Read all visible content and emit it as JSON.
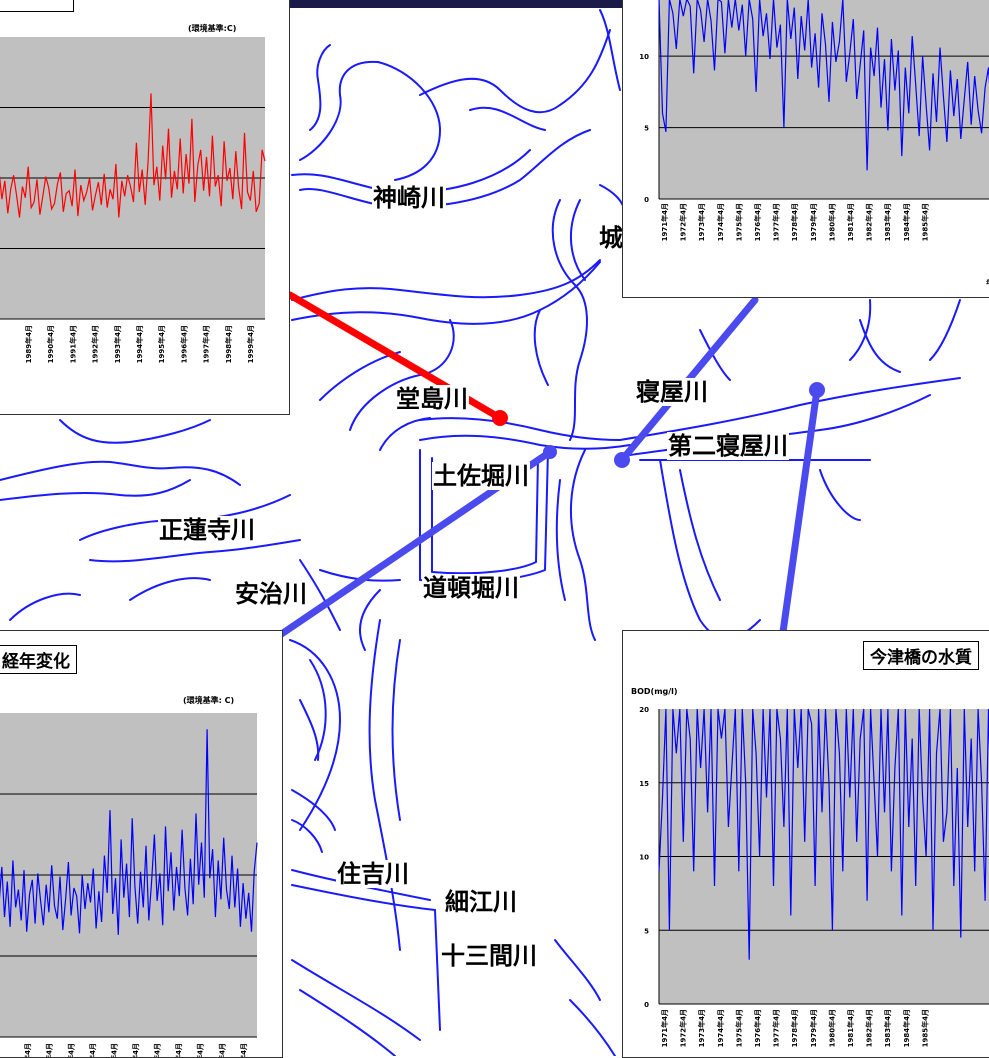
{
  "map": {
    "rivers": [
      {
        "name": "神崎川"
      },
      {
        "name": "堂島川"
      },
      {
        "name": "土佐堀川"
      },
      {
        "name": "寝屋川"
      },
      {
        "name": "第二寝屋川"
      },
      {
        "name": "正蓮寺川"
      },
      {
        "name": "安治川"
      },
      {
        "name": "道頓堀川"
      },
      {
        "name": "住吉川"
      },
      {
        "name": "細江川"
      },
      {
        "name": "十三間川"
      },
      {
        "name": "城"
      }
    ],
    "colors": {
      "river": "#1a1aff",
      "pointer_red": "#ff0000",
      "pointer_blue": "#4444ee"
    }
  },
  "chart_data": [
    {
      "type": "line",
      "panel": "top-left",
      "title": "",
      "std_note": "(環境基準:C)",
      "ylabel": "",
      "series_color": "#ff0000",
      "x_ticks": [
        "1989年4月",
        "1990年4月",
        "1991年4月",
        "1992年4月",
        "1993年4月",
        "1994年4月",
        "1995年4月",
        "1996年4月",
        "1997年4月",
        "1998年4月",
        "1999年4月"
      ],
      "ylim": [
        0,
        20
      ],
      "values": [
        10.5,
        8.5,
        9.8,
        7.5,
        9.2,
        10.2,
        8.8,
        7.2,
        9.4,
        8.6,
        10.8,
        7.9,
        8.3,
        9.9,
        7.4,
        8.7,
        10.1,
        9.3,
        7.8,
        8.2,
        9.6,
        10.4,
        7.6,
        8.9,
        9.1,
        8.0,
        10.6,
        7.3,
        9.5,
        8.4,
        9.0,
        10.0,
        7.7,
        8.8,
        9.7,
        8.1,
        10.3,
        7.9,
        9.2,
        8.5,
        11.0,
        7.2,
        9.8,
        8.7,
        10.2,
        9.4,
        8.3,
        12.5,
        9.0,
        10.6,
        8.1,
        11.2,
        16.0,
        9.5,
        10.8,
        8.4,
        12.3,
        9.9,
        13.5,
        8.6,
        10.5,
        9.2,
        12.8,
        8.9,
        11.7,
        9.6,
        14.2,
        8.3,
        10.9,
        12.0,
        9.1,
        11.5,
        8.7,
        13.0,
        9.4,
        10.2,
        8.0,
        12.6,
        9.8,
        10.7,
        8.5,
        11.9,
        9.3,
        7.8,
        13.2,
        9.0,
        8.4,
        10.5,
        7.6,
        8.2,
        12.0,
        11.2
      ]
    },
    {
      "type": "line",
      "panel": "top-right",
      "title": "",
      "ylabel": "",
      "series_color": "#0000ff",
      "x_ticks": [
        "1971年4月",
        "1972年4月",
        "1973年4月",
        "1974年4月",
        "1975年4月",
        "1976年4月",
        "1977年4月",
        "1978年4月",
        "1979年4月",
        "1980年4月",
        "1981年4月",
        "1982年4月",
        "1983年4月",
        "1984年4月",
        "1985年4月"
      ],
      "y_ticks": [
        "0",
        "5",
        "10"
      ],
      "ylim": [
        0,
        14
      ],
      "x_unit": "年",
      "values": [
        14,
        6,
        4.7,
        14,
        13,
        10.5,
        14,
        12.8,
        14,
        13.5,
        8.8,
        14,
        13.2,
        11,
        14,
        12.5,
        9,
        14,
        13.8,
        10.2,
        14,
        12,
        14,
        11.8,
        13.6,
        10,
        14,
        12.6,
        7.5,
        14,
        11.4,
        13,
        9.8,
        14,
        10.6,
        12.2,
        5,
        14,
        11.2,
        13.4,
        8.4,
        12.8,
        10.4,
        14,
        9.2,
        11.6,
        7.8,
        13,
        10.8,
        6.8,
        12.4,
        9.6,
        11,
        14,
        8.2,
        10.2,
        12.6,
        7,
        9.4,
        11.8,
        2,
        10.6,
        8.6,
        12,
        6.4,
        9.8,
        4.8,
        11.2,
        7.6,
        10.4,
        3,
        9.2,
        6,
        11.4,
        8,
        4.4,
        10,
        6.6,
        3.4,
        8.8,
        5.4,
        10.6,
        7.2,
        4,
        9,
        5.8,
        8.4,
        4.2,
        7,
        9.6,
        5.2,
        8.6,
        6.2,
        4.6,
        7.8,
        9.2,
        5.6
      ]
    },
    {
      "type": "line",
      "panel": "bottom-left",
      "title": "経年変化",
      "std_note": "(環境基準: C)",
      "ylabel": "",
      "series_color": "#0000ff",
      "x_ticks": [
        "1989年4月",
        "1990年4月",
        "1991年4月",
        "1992年4月",
        "1993年4月",
        "1994年4月",
        "1995年4月",
        "1996年4月",
        "1997年4月",
        "1998年4月",
        "1999年4月"
      ],
      "ylim": [
        0,
        20
      ],
      "values": [
        8.2,
        10.5,
        7.4,
        9.6,
        6.8,
        10.9,
        8.0,
        9.1,
        7.2,
        10.3,
        6.5,
        8.8,
        9.7,
        7.0,
        10.1,
        8.4,
        6.9,
        9.4,
        7.7,
        10.6,
        8.1,
        7.3,
        9.9,
        6.6,
        8.5,
        10.8,
        7.5,
        9.2,
        8.7,
        6.4,
        10.0,
        7.9,
        9.5,
        8.3,
        10.4,
        6.7,
        9.0,
        7.1,
        11.2,
        8.9,
        14.0,
        7.6,
        9.8,
        6.3,
        12.2,
        8.6,
        10.7,
        7.4,
        13.5,
        9.3,
        7.0,
        10.2,
        8.0,
        11.8,
        7.2,
        9.6,
        12.5,
        8.4,
        10.1,
        6.9,
        13.0,
        9.0,
        11.4,
        7.8,
        10.5,
        8.7,
        12.8,
        9.2,
        7.5,
        11.0,
        8.2,
        13.8,
        9.4,
        12.0,
        8.6,
        19.0,
        9.8,
        11.6,
        7.4,
        10.9,
        8.5,
        12.3,
        9.1,
        7.9,
        11.2,
        8.0,
        10.4,
        6.8,
        9.5,
        7.3,
        8.9,
        6.5,
        10.2,
        12.0
      ]
    },
    {
      "type": "line",
      "panel": "bottom-right",
      "title": "今津橋の水質",
      "ylabel": "BOD(mg/l)",
      "series_color": "#0000ff",
      "x_ticks": [
        "1971年4月",
        "1972年4月",
        "1973年4月",
        "1974年4月",
        "1975年4月",
        "1976年4月",
        "1977年4月",
        "1978年4月",
        "1979年4月",
        "1980年4月",
        "1981年4月",
        "1982年4月",
        "1983年4月",
        "1984年4月",
        "1985年4月"
      ],
      "y_ticks": [
        "0",
        "5",
        "10",
        "15",
        "20"
      ],
      "ylim": [
        0,
        20
      ],
      "values": [
        9,
        14,
        20,
        5,
        20,
        17,
        20,
        11,
        20,
        18,
        9,
        20,
        16,
        20,
        13,
        20,
        8,
        20,
        18,
        20,
        12,
        16,
        20,
        9,
        20,
        15,
        3,
        20,
        17,
        10,
        20,
        14,
        20,
        8,
        20,
        18,
        12,
        20,
        6,
        20,
        16,
        20,
        11,
        20,
        19,
        8,
        20,
        13,
        20,
        15,
        5,
        20,
        17,
        9,
        20,
        14,
        20,
        11,
        18,
        20,
        7,
        20,
        15,
        10,
        20,
        13,
        20,
        9,
        16,
        20,
        6,
        20,
        12,
        18,
        8,
        20,
        14,
        10,
        20,
        5,
        17,
        20,
        11,
        13,
        20,
        8,
        16,
        4.5,
        20,
        12,
        18,
        9,
        20,
        15,
        7,
        20,
        11
      ]
    }
  ]
}
